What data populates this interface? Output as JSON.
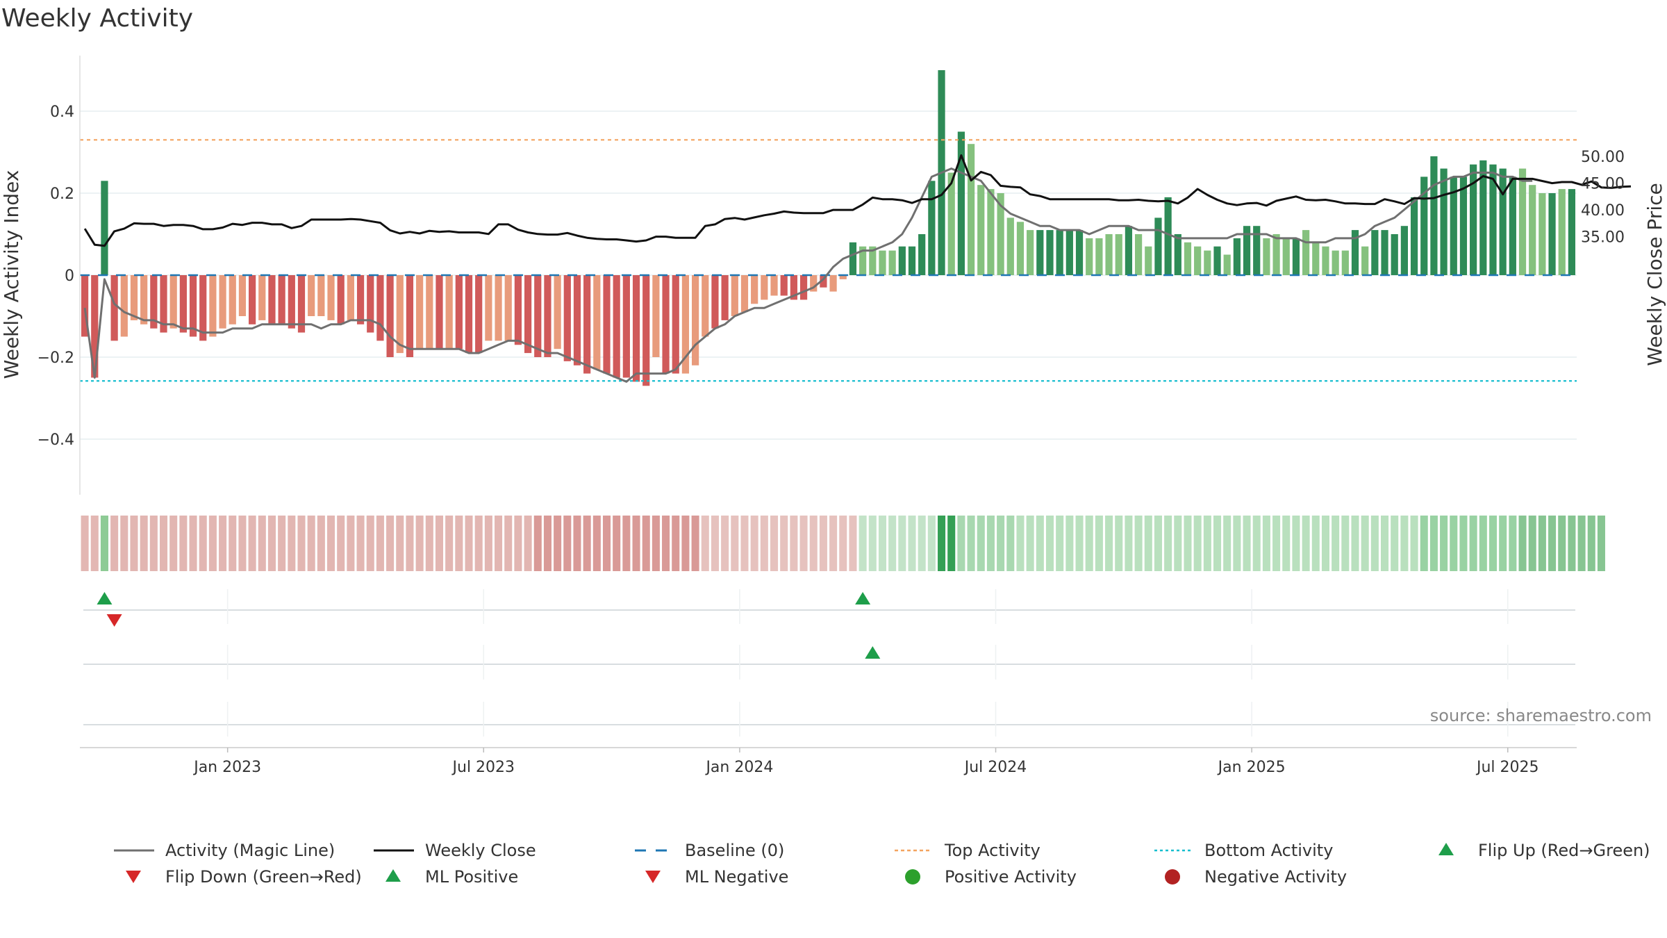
{
  "chart_data": {
    "type": "bar",
    "title": "Weekly Activity",
    "ylabel_left": "Weekly Activity Index",
    "ylabel_right": "Weekly Close Price",
    "source": "source: sharemaestro.com",
    "y_left_ticks": [
      {
        "v": 0.4,
        "label": "0.4"
      },
      {
        "v": 0.2,
        "label": "0.2"
      },
      {
        "v": 0,
        "label": "0"
      },
      {
        "v": -0.2,
        "label": "−0.2"
      },
      {
        "v": -0.4,
        "label": "−0.4"
      }
    ],
    "y_right_ticks": [
      {
        "v": 50,
        "label": "50.00"
      },
      {
        "v": 45,
        "label": "45.00"
      },
      {
        "v": 40,
        "label": "40.00"
      },
      {
        "v": 35,
        "label": "35.00"
      }
    ],
    "x_ticks": [
      {
        "week": 15,
        "label": "Jan 2023"
      },
      {
        "week": 41,
        "label": "Jul 2023"
      },
      {
        "week": 67,
        "label": "Jan 2024"
      },
      {
        "week": 93,
        "label": "Jul 2024"
      },
      {
        "week": 119,
        "label": "Jan 2025"
      },
      {
        "week": 145,
        "label": "Jul 2025"
      }
    ],
    "top_activity": 0.33,
    "bottom_activity": -0.258,
    "colors": {
      "dark_red": "#d05a5a",
      "light_red": "#e89b7c",
      "dark_green": "#2e8b57",
      "light_green": "#85c17e",
      "magic_line": "#707070",
      "weekly_close": "#111111",
      "baseline": "#1f77b4",
      "top_activity": "#f4a460",
      "bottom_activity": "#17becf",
      "marker_green": "#1e9e4a",
      "marker_red": "#d62728",
      "pos_dot": "#2ca02c",
      "neg_dot": "#b22222"
    },
    "activity": [
      -0.15,
      -0.25,
      0.23,
      -0.16,
      -0.15,
      -0.11,
      -0.12,
      -0.13,
      -0.14,
      -0.13,
      -0.14,
      -0.15,
      -0.16,
      -0.15,
      -0.13,
      -0.12,
      -0.1,
      -0.12,
      -0.11,
      -0.12,
      -0.12,
      -0.13,
      -0.14,
      -0.1,
      -0.1,
      -0.11,
      -0.12,
      -0.11,
      -0.12,
      -0.14,
      -0.16,
      -0.2,
      -0.19,
      -0.2,
      -0.18,
      -0.18,
      -0.18,
      -0.18,
      -0.18,
      -0.19,
      -0.19,
      -0.16,
      -0.16,
      -0.16,
      -0.17,
      -0.19,
      -0.2,
      -0.2,
      -0.18,
      -0.21,
      -0.22,
      -0.24,
      -0.23,
      -0.24,
      -0.25,
      -0.25,
      -0.26,
      -0.27,
      -0.2,
      -0.24,
      -0.24,
      -0.24,
      -0.22,
      -0.15,
      -0.13,
      -0.11,
      -0.1,
      -0.09,
      -0.07,
      -0.06,
      -0.05,
      -0.05,
      -0.06,
      -0.06,
      -0.04,
      -0.03,
      -0.04,
      -0.01,
      0.08,
      0.07,
      0.07,
      0.06,
      0.06,
      0.07,
      0.07,
      0.1,
      0.23,
      0.5,
      0.25,
      0.35,
      0.32,
      0.22,
      0.21,
      0.2,
      0.14,
      0.13,
      0.11,
      0.11,
      0.11,
      0.11,
      0.11,
      0.11,
      0.09,
      0.09,
      0.1,
      0.1,
      0.12,
      0.1,
      0.07,
      0.14,
      0.19,
      0.1,
      0.08,
      0.07,
      0.06,
      0.07,
      0.05,
      0.09,
      0.12,
      0.12,
      0.09,
      0.1,
      0.09,
      0.09,
      0.11,
      0.08,
      0.07,
      0.06,
      0.06,
      0.11,
      0.07,
      0.11,
      0.11,
      0.1,
      0.12,
      0.19,
      0.24,
      0.29,
      0.26,
      0.24,
      0.24,
      0.27,
      0.28,
      0.27,
      0.26,
      0.24,
      0.26,
      0.22,
      0.2,
      0.2,
      0.21,
      0.21
    ],
    "activity_shade": [
      1,
      1,
      1,
      1,
      0,
      0,
      0,
      1,
      1,
      0,
      1,
      1,
      1,
      0,
      0,
      0,
      0,
      1,
      0,
      1,
      1,
      1,
      1,
      0,
      0,
      0,
      1,
      0,
      1,
      1,
      1,
      1,
      0,
      1,
      0,
      0,
      1,
      0,
      1,
      1,
      1,
      0,
      0,
      0,
      1,
      1,
      1,
      1,
      0,
      1,
      1,
      1,
      0,
      1,
      1,
      1,
      1,
      1,
      0,
      1,
      1,
      0,
      0,
      0,
      1,
      1,
      0,
      0,
      0,
      0,
      0,
      1,
      1,
      1,
      0,
      1,
      0,
      0,
      1,
      0,
      0,
      0,
      0,
      1,
      1,
      1,
      1,
      1,
      0,
      1,
      0,
      0,
      0,
      0,
      0,
      0,
      0,
      1,
      1,
      1,
      1,
      1,
      0,
      0,
      0,
      0,
      1,
      0,
      0,
      1,
      1,
      1,
      0,
      0,
      0,
      1,
      0,
      1,
      1,
      1,
      0,
      0,
      0,
      1,
      0,
      0,
      0,
      0,
      0,
      1,
      0,
      1,
      1,
      1,
      1,
      1,
      1,
      1,
      1,
      1,
      1,
      1,
      1,
      1,
      1,
      1,
      0,
      0,
      0,
      1,
      0,
      1,
      1
    ],
    "magic_line": [
      -0.08,
      -0.25,
      -0.01,
      -0.07,
      -0.09,
      -0.1,
      -0.11,
      -0.11,
      -0.12,
      -0.12,
      -0.13,
      -0.13,
      -0.14,
      -0.14,
      -0.14,
      -0.13,
      -0.13,
      -0.13,
      -0.12,
      -0.12,
      -0.12,
      -0.12,
      -0.12,
      -0.12,
      -0.13,
      -0.12,
      -0.12,
      -0.11,
      -0.11,
      -0.11,
      -0.12,
      -0.15,
      -0.17,
      -0.18,
      -0.18,
      -0.18,
      -0.18,
      -0.18,
      -0.18,
      -0.19,
      -0.19,
      -0.18,
      -0.17,
      -0.16,
      -0.16,
      -0.17,
      -0.18,
      -0.19,
      -0.19,
      -0.2,
      -0.21,
      -0.22,
      -0.23,
      -0.24,
      -0.25,
      -0.26,
      -0.24,
      -0.24,
      -0.24,
      -0.24,
      -0.23,
      -0.2,
      -0.17,
      -0.15,
      -0.13,
      -0.12,
      -0.1,
      -0.09,
      -0.08,
      -0.08,
      -0.07,
      -0.06,
      -0.05,
      -0.04,
      -0.03,
      -0.01,
      0.02,
      0.04,
      0.05,
      0.06,
      0.06,
      0.07,
      0.08,
      0.1,
      0.14,
      0.19,
      0.24,
      0.25,
      0.26,
      0.25,
      0.24,
      0.23,
      0.2,
      0.17,
      0.15,
      0.14,
      0.13,
      0.12,
      0.12,
      0.11,
      0.11,
      0.11,
      0.1,
      0.11,
      0.12,
      0.12,
      0.12,
      0.11,
      0.11,
      0.11,
      0.1,
      0.09,
      0.09,
      0.09,
      0.09,
      0.09,
      0.09,
      0.1,
      0.1,
      0.1,
      0.1,
      0.09,
      0.09,
      0.09,
      0.08,
      0.08,
      0.08,
      0.09,
      0.09,
      0.09,
      0.1,
      0.12,
      0.13,
      0.14,
      0.16,
      0.18,
      0.2,
      0.22,
      0.23,
      0.24,
      0.24,
      0.25,
      0.25,
      0.25,
      0.24,
      0.24,
      0.23,
      0.23
    ],
    "weekly_close": [
      36.5,
      33.5,
      33.3,
      36,
      36.5,
      37.5,
      37.4,
      37.4,
      37,
      37.2,
      37.2,
      37,
      36.4,
      36.4,
      36.7,
      37.4,
      37.2,
      37.6,
      37.6,
      37.3,
      37.3,
      36.6,
      37,
      38.2,
      38.2,
      38.2,
      38.2,
      38.3,
      38.2,
      37.9,
      37.6,
      36.2,
      35.6,
      35.9,
      35.6,
      36.1,
      35.9,
      36,
      35.8,
      35.8,
      35.8,
      35.5,
      37.3,
      37.3,
      36.3,
      35.8,
      35.5,
      35.4,
      35.4,
      35.7,
      35.2,
      34.8,
      34.6,
      34.5,
      34.5,
      34.3,
      34.1,
      34.3,
      35,
      35,
      34.8,
      34.8,
      34.8,
      37,
      37.3,
      38.3,
      38.5,
      38.2,
      38.6,
      39,
      39.3,
      39.7,
      39.5,
      39.4,
      39.4,
      39.4,
      40,
      40,
      40,
      41,
      42.3,
      42,
      42,
      41.8,
      41.3,
      42,
      42,
      42.8,
      45,
      50.2,
      45.5,
      47.1,
      46.5,
      44.5,
      44.3,
      44.2,
      42.9,
      42.6,
      42,
      42,
      42,
      42,
      42,
      42,
      42,
      41.8,
      41.8,
      41.9,
      41.7,
      41.6,
      41.7,
      41.2,
      42.3,
      43.9,
      42.8,
      41.9,
      41.2,
      40.9,
      41.2,
      41.3,
      40.8,
      41.7,
      42.1,
      42.5,
      41.9,
      41.8,
      41.9,
      41.6,
      41.2,
      41.2,
      41.1,
      41.1,
      42,
      41.6,
      41.1,
      42.2,
      42.1,
      42.2,
      42.8,
      43.3,
      44,
      45,
      46.3,
      45.8,
      42.9,
      45.8,
      45.8,
      45.8,
      45.4,
      45,
      45.2,
      45.2,
      44.7,
      45.3,
      44.2,
      44.1,
      44.3,
      44.4
    ],
    "bands": [
      {
        "from": 0,
        "to": 1,
        "color": "#e3b7b3"
      },
      {
        "from": 2,
        "to": 2,
        "color": "#8ecb95"
      },
      {
        "from": 3,
        "to": 45,
        "color": "#e2b6b2"
      },
      {
        "from": 46,
        "to": 62,
        "color": "#d99a97"
      },
      {
        "from": 63,
        "to": 78,
        "color": "#e6c2be"
      },
      {
        "from": 79,
        "to": 86,
        "color": "#c3e3c8"
      },
      {
        "from": 87,
        "to": 88,
        "color": "#35a055"
      },
      {
        "from": 89,
        "to": 94,
        "color": "#a8d8b0"
      },
      {
        "from": 95,
        "to": 135,
        "color": "#b9e0be"
      },
      {
        "from": 136,
        "to": 145,
        "color": "#99d2a3"
      },
      {
        "from": 146,
        "to": 154,
        "color": "#87c592"
      }
    ],
    "flip_up": [
      2,
      79
    ],
    "flip_down": [
      3
    ],
    "ml_positive": [
      80
    ],
    "ml_negative": [],
    "legend": [
      "Activity (Magic Line)",
      "Weekly Close",
      "Baseline (0)",
      "Top Activity",
      "Bottom Activity",
      "Flip Up (Red→Green)",
      "Flip Down (Green→Red)",
      "ML Positive",
      "ML Negative",
      "Positive Activity",
      "Negative Activity"
    ]
  }
}
